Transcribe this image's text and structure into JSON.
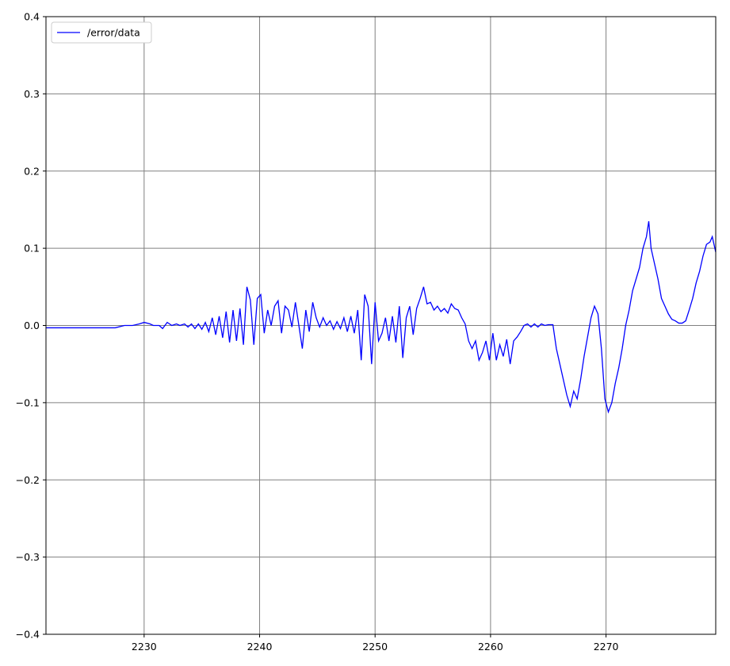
{
  "chart_data": {
    "type": "line",
    "xlim": [
      2221.5,
      2279.5
    ],
    "ylim": [
      -0.4,
      0.4
    ],
    "x_ticks": [
      2230,
      2240,
      2250,
      2260,
      2270
    ],
    "y_ticks": [
      -0.4,
      -0.3,
      -0.2,
      -0.1,
      0.0,
      0.1,
      0.2,
      0.3,
      0.4
    ],
    "x_tick_labels": [
      "2230",
      "2240",
      "2250",
      "2260",
      "2270"
    ],
    "y_tick_labels": [
      "−0.4",
      "−0.3",
      "−0.2",
      "−0.1",
      "0.0",
      "0.1",
      "0.2",
      "0.3",
      "0.4"
    ],
    "grid": true,
    "grid_color": "#808080",
    "legend_position": "upper-left",
    "series": [
      {
        "name": "/error/data",
        "color": "#0000ff",
        "points": [
          [
            2221.5,
            -0.003
          ],
          [
            2227.5,
            -0.003
          ],
          [
            2228.3,
            0.0
          ],
          [
            2229.0,
            0.0
          ],
          [
            2229.6,
            0.002
          ],
          [
            2230.0,
            0.004
          ],
          [
            2230.5,
            0.002
          ],
          [
            2230.8,
            0.0
          ],
          [
            2231.3,
            0.0
          ],
          [
            2231.6,
            -0.004
          ],
          [
            2232.0,
            0.004
          ],
          [
            2232.4,
            0.0
          ],
          [
            2232.8,
            0.002
          ],
          [
            2233.1,
            0.0
          ],
          [
            2233.5,
            0.002
          ],
          [
            2233.8,
            -0.002
          ],
          [
            2234.1,
            0.002
          ],
          [
            2234.4,
            -0.004
          ],
          [
            2234.7,
            0.002
          ],
          [
            2235.0,
            -0.005
          ],
          [
            2235.3,
            0.004
          ],
          [
            2235.6,
            -0.008
          ],
          [
            2235.9,
            0.01
          ],
          [
            2236.2,
            -0.012
          ],
          [
            2236.5,
            0.012
          ],
          [
            2236.8,
            -0.016
          ],
          [
            2237.1,
            0.018
          ],
          [
            2237.4,
            -0.022
          ],
          [
            2237.7,
            0.02
          ],
          [
            2238.0,
            -0.02
          ],
          [
            2238.3,
            0.022
          ],
          [
            2238.6,
            -0.025
          ],
          [
            2238.9,
            0.05
          ],
          [
            2239.2,
            0.033
          ],
          [
            2239.5,
            -0.025
          ],
          [
            2239.8,
            0.035
          ],
          [
            2240.1,
            0.04
          ],
          [
            2240.4,
            -0.01
          ],
          [
            2240.7,
            0.02
          ],
          [
            2241.0,
            0.0
          ],
          [
            2241.3,
            0.025
          ],
          [
            2241.6,
            0.032
          ],
          [
            2241.9,
            -0.01
          ],
          [
            2242.2,
            0.025
          ],
          [
            2242.5,
            0.02
          ],
          [
            2242.8,
            -0.002
          ],
          [
            2243.1,
            0.03
          ],
          [
            2243.4,
            0.0
          ],
          [
            2243.7,
            -0.03
          ],
          [
            2244.0,
            0.02
          ],
          [
            2244.3,
            -0.008
          ],
          [
            2244.6,
            0.03
          ],
          [
            2244.9,
            0.01
          ],
          [
            2245.2,
            -0.002
          ],
          [
            2245.5,
            0.01
          ],
          [
            2245.8,
            0.0
          ],
          [
            2246.1,
            0.006
          ],
          [
            2246.4,
            -0.005
          ],
          [
            2246.7,
            0.005
          ],
          [
            2247.0,
            -0.004
          ],
          [
            2247.3,
            0.01
          ],
          [
            2247.6,
            -0.008
          ],
          [
            2247.9,
            0.012
          ],
          [
            2248.2,
            -0.01
          ],
          [
            2248.5,
            0.02
          ],
          [
            2248.8,
            -0.045
          ],
          [
            2249.1,
            0.04
          ],
          [
            2249.4,
            0.025
          ],
          [
            2249.7,
            -0.05
          ],
          [
            2250.0,
            0.03
          ],
          [
            2250.3,
            -0.02
          ],
          [
            2250.6,
            -0.01
          ],
          [
            2250.9,
            0.01
          ],
          [
            2251.2,
            -0.02
          ],
          [
            2251.5,
            0.012
          ],
          [
            2251.8,
            -0.022
          ],
          [
            2252.1,
            0.025
          ],
          [
            2252.4,
            -0.042
          ],
          [
            2252.7,
            0.01
          ],
          [
            2253.0,
            0.025
          ],
          [
            2253.3,
            -0.012
          ],
          [
            2253.6,
            0.022
          ],
          [
            2253.9,
            0.035
          ],
          [
            2254.2,
            0.05
          ],
          [
            2254.5,
            0.028
          ],
          [
            2254.8,
            0.03
          ],
          [
            2255.1,
            0.02
          ],
          [
            2255.4,
            0.025
          ],
          [
            2255.7,
            0.018
          ],
          [
            2256.0,
            0.022
          ],
          [
            2256.3,
            0.016
          ],
          [
            2256.6,
            0.028
          ],
          [
            2256.9,
            0.022
          ],
          [
            2257.2,
            0.02
          ],
          [
            2257.5,
            0.01
          ],
          [
            2257.8,
            0.002
          ],
          [
            2258.1,
            -0.02
          ],
          [
            2258.4,
            -0.03
          ],
          [
            2258.7,
            -0.02
          ],
          [
            2259.0,
            -0.045
          ],
          [
            2259.3,
            -0.035
          ],
          [
            2259.6,
            -0.02
          ],
          [
            2259.9,
            -0.045
          ],
          [
            2260.2,
            -0.01
          ],
          [
            2260.5,
            -0.045
          ],
          [
            2260.8,
            -0.025
          ],
          [
            2261.1,
            -0.04
          ],
          [
            2261.4,
            -0.018
          ],
          [
            2261.7,
            -0.05
          ],
          [
            2262.0,
            -0.02
          ],
          [
            2262.3,
            -0.015
          ],
          [
            2262.6,
            -0.008
          ],
          [
            2262.9,
            0.0
          ],
          [
            2263.2,
            0.002
          ],
          [
            2263.5,
            -0.002
          ],
          [
            2263.8,
            0.002
          ],
          [
            2264.1,
            -0.002
          ],
          [
            2264.4,
            0.002
          ],
          [
            2264.7,
            0.0
          ],
          [
            2265.0,
            0.001
          ],
          [
            2265.4,
            0.001
          ],
          [
            2265.7,
            -0.03
          ],
          [
            2266.0,
            -0.05
          ],
          [
            2266.3,
            -0.07
          ],
          [
            2266.6,
            -0.09
          ],
          [
            2266.9,
            -0.105
          ],
          [
            2267.2,
            -0.085
          ],
          [
            2267.5,
            -0.095
          ],
          [
            2267.8,
            -0.07
          ],
          [
            2268.1,
            -0.04
          ],
          [
            2268.4,
            -0.015
          ],
          [
            2268.7,
            0.01
          ],
          [
            2269.0,
            0.025
          ],
          [
            2269.3,
            0.015
          ],
          [
            2269.6,
            -0.03
          ],
          [
            2269.9,
            -0.095
          ],
          [
            2270.2,
            -0.112
          ],
          [
            2270.5,
            -0.1
          ],
          [
            2270.8,
            -0.075
          ],
          [
            2271.1,
            -0.055
          ],
          [
            2271.4,
            -0.03
          ],
          [
            2271.7,
            0.0
          ],
          [
            2272.0,
            0.02
          ],
          [
            2272.3,
            0.045
          ],
          [
            2272.6,
            0.06
          ],
          [
            2272.9,
            0.075
          ],
          [
            2273.2,
            0.1
          ],
          [
            2273.5,
            0.115
          ],
          [
            2273.7,
            0.135
          ],
          [
            2273.9,
            0.1
          ],
          [
            2274.2,
            0.08
          ],
          [
            2274.5,
            0.06
          ],
          [
            2274.8,
            0.035
          ],
          [
            2275.1,
            0.025
          ],
          [
            2275.4,
            0.015
          ],
          [
            2275.7,
            0.008
          ],
          [
            2276.0,
            0.006
          ],
          [
            2276.3,
            0.003
          ],
          [
            2276.6,
            0.003
          ],
          [
            2276.9,
            0.006
          ],
          [
            2277.2,
            0.02
          ],
          [
            2277.5,
            0.035
          ],
          [
            2277.8,
            0.055
          ],
          [
            2278.1,
            0.07
          ],
          [
            2278.4,
            0.09
          ],
          [
            2278.7,
            0.105
          ],
          [
            2279.0,
            0.108
          ],
          [
            2279.2,
            0.115
          ],
          [
            2279.5,
            0.095
          ]
        ]
      }
    ]
  }
}
